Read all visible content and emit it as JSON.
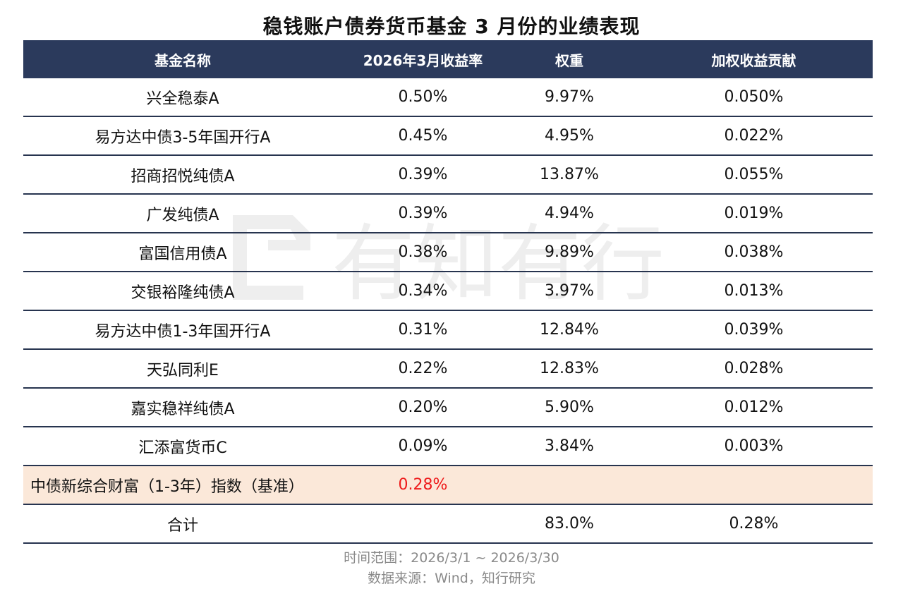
{
  "title": "稳钱账户债券货币基金 3 月份的业绩表现",
  "watermark": "有知有行",
  "chart_data": {
    "type": "table",
    "columns": [
      "基金名称",
      "2026年3月收益率",
      "权重",
      "加权收益贡献"
    ],
    "rows": [
      {
        "name": "兴全稳泰A",
        "ret": "0.50%",
        "weight": "9.97%",
        "contrib": "0.050%"
      },
      {
        "name": "易方达中债3-5年国开行A",
        "ret": "0.45%",
        "weight": "4.95%",
        "contrib": "0.022%"
      },
      {
        "name": "招商招悦纯债A",
        "ret": "0.39%",
        "weight": "13.87%",
        "contrib": "0.055%"
      },
      {
        "name": "广发纯债A",
        "ret": "0.39%",
        "weight": "4.94%",
        "contrib": "0.019%"
      },
      {
        "name": "富国信用债A",
        "ret": "0.38%",
        "weight": "9.89%",
        "contrib": "0.038%"
      },
      {
        "name": "交银裕隆纯债A",
        "ret": "0.34%",
        "weight": "3.97%",
        "contrib": "0.013%"
      },
      {
        "name": "易方达中债1-3年国开行A",
        "ret": "0.31%",
        "weight": "12.84%",
        "contrib": "0.039%"
      },
      {
        "name": "天弘同利E",
        "ret": "0.22%",
        "weight": "12.83%",
        "contrib": "0.028%"
      },
      {
        "name": "嘉实稳祥纯债A",
        "ret": "0.20%",
        "weight": "5.90%",
        "contrib": "0.012%"
      },
      {
        "name": "汇添富货币C",
        "ret": "0.09%",
        "weight": "3.84%",
        "contrib": "0.003%"
      }
    ],
    "benchmark": {
      "name": "中债新综合财富（1-3年）指数（基准）",
      "ret": "0.28%"
    },
    "total": {
      "name": "合计",
      "weight": "83.0%",
      "contrib": "0.28%"
    }
  },
  "footer": {
    "range": "时间范围：2026/3/1 ~ 2026/3/30",
    "source": "数据来源：Wind，知行研究"
  },
  "colors": {
    "header_bg": "#2b3a5c",
    "benchmark_bg": "#fbe8d9",
    "benchmark_value": "#ee1a1a",
    "row_border": "#27344f"
  }
}
